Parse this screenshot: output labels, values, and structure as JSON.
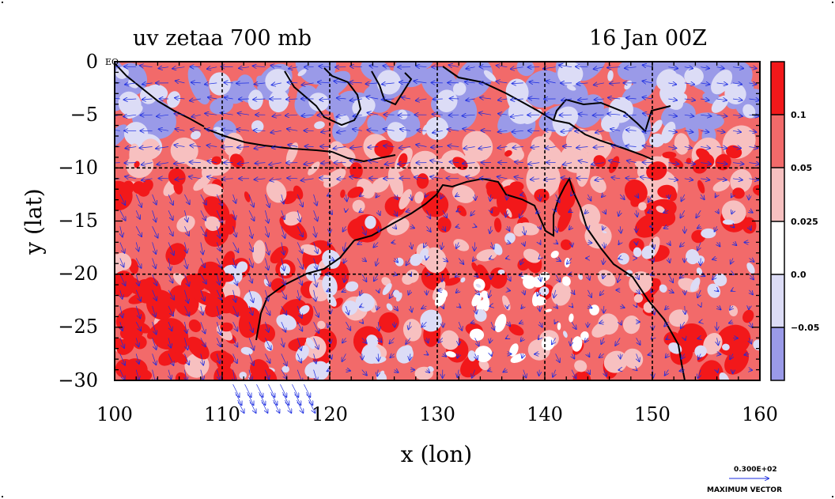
{
  "chart_data": {
    "type": "heatmap",
    "title": "uv zetaa 700 mb",
    "date_label": "16 Jan 00Z",
    "xlabel": "x (lon)",
    "ylabel": "y (lat)",
    "xlim": [
      100,
      160
    ],
    "ylim": [
      -30,
      0
    ],
    "x_ticks": [
      "100",
      "110",
      "120",
      "130",
      "140",
      "150",
      "160"
    ],
    "y_ticks": [
      "0",
      "−5",
      "−10",
      "−15",
      "−20",
      "−25",
      "−30"
    ],
    "grid": true,
    "equator_label": "EQ",
    "colorbar": {
      "labels": [
        "0.1",
        "0.05",
        "0.025",
        "0.0",
        "−0.05"
      ],
      "colors": [
        "#f2181a",
        "#f26a6a",
        "#f7c0c0",
        "#ffffff",
        "#dcdcf6",
        "#9a9ae8"
      ]
    },
    "vector_reference": {
      "value_label": "0.300E+02",
      "caption": "MAXIMUM VECTOR",
      "color": "#1a2be0"
    },
    "colors": {
      "deep_red": "#f2181a",
      "mid_red": "#f26a6a",
      "light_red": "#f7c0c0",
      "light_blue": "#dcdcf6",
      "mid_blue": "#9a9ae8",
      "vectors": "#1a2be0",
      "coast": "#000000"
    }
  }
}
